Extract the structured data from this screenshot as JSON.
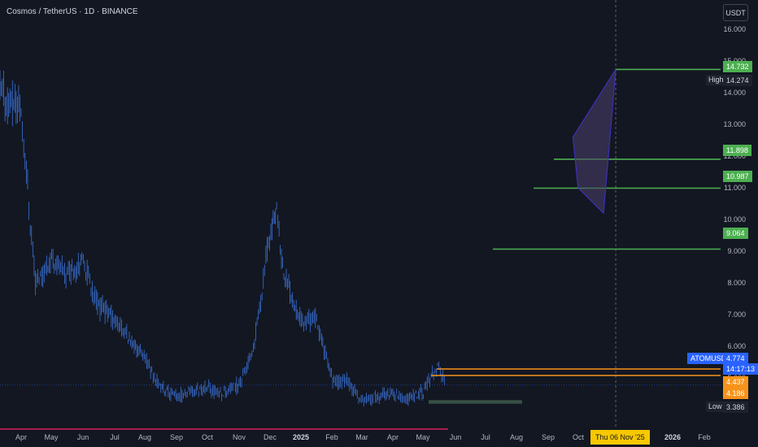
{
  "header": {
    "title": "Cosmos / TetherUS · 1D · BINANCE",
    "currency": "USDT"
  },
  "colors": {
    "background": "#131722",
    "candle": "#3b73d9",
    "level_green": "#4caf50",
    "orange": "#f7931a",
    "pink": "#e91e63",
    "blue_label": "#2962ff",
    "crosshair_date": "#f7c800",
    "pattern_fill": "#4a3f6b",
    "pattern_stroke": "#3f2fbd"
  },
  "chart_data": {
    "type": "candlestick",
    "symbol": "ATOMUSDT",
    "y_axis": {
      "ticks": [
        "16.000",
        "15.000",
        "14.000",
        "13.000",
        "12.000",
        "11.000",
        "10.000",
        "9.000",
        "8.000",
        "7.000",
        "6.000",
        "5.000",
        "4.000"
      ],
      "ylim": [
        3.2,
        16.5
      ]
    },
    "x_axis": {
      "ticks": [
        "Apr",
        "May",
        "Jun",
        "Jul",
        "Aug",
        "Sep",
        "Oct",
        "Nov",
        "Dec",
        "2025",
        "Feb",
        "Mar",
        "Apr",
        "May",
        "Jun",
        "Jul",
        "Aug",
        "Sep",
        "Oct",
        "Dec",
        "2026",
        "Feb"
      ]
    },
    "price_series": {
      "x": [
        "2024-04-01",
        "2024-04-15",
        "2024-05-01",
        "2024-05-15",
        "2024-06-01",
        "2024-06-15",
        "2024-07-01",
        "2024-07-15",
        "2024-08-01",
        "2024-08-15",
        "2024-09-01",
        "2024-09-15",
        "2024-10-01",
        "2024-10-15",
        "2024-11-01",
        "2024-11-15",
        "2024-12-01",
        "2024-12-08",
        "2024-12-15",
        "2025-01-01",
        "2025-01-15",
        "2025-02-01",
        "2025-02-15",
        "2025-03-01",
        "2025-03-15",
        "2025-04-01",
        "2025-04-15",
        "2025-05-01",
        "2025-05-15",
        "2025-05-23"
      ],
      "y": [
        13.5,
        8.0,
        8.8,
        8.3,
        8.7,
        7.3,
        6.9,
        6.3,
        5.6,
        4.7,
        4.4,
        4.6,
        4.7,
        4.5,
        4.8,
        5.8,
        9.5,
        10.2,
        8.3,
        6.8,
        6.9,
        4.9,
        4.9,
        4.3,
        4.4,
        4.5,
        4.3,
        4.6,
        5.4,
        4.8
      ]
    },
    "levels": [
      {
        "value": 14.732,
        "label": "14.732"
      },
      {
        "value": 11.898,
        "label": "11.898"
      },
      {
        "value": 10.987,
        "label": "10.987"
      },
      {
        "value": 9.064,
        "label": "9.064"
      }
    ],
    "support_lines": [
      {
        "value": 4.437,
        "label": "4.437"
      },
      {
        "value": 4.186,
        "label": "4.186"
      }
    ],
    "support_zone": {
      "from": 4.186,
      "to": 4.3
    },
    "low_line": {
      "value": 3.386
    },
    "current": {
      "label": "ATOMUSDT",
      "price": "4.774",
      "countdown": "14:17:13"
    },
    "high": {
      "label": "High",
      "value": "14.274"
    },
    "low": {
      "label": "Low",
      "value": "3.386"
    },
    "crosshair_date": "Thu 06 Nov '25",
    "pattern": {
      "type": "triangle-shape",
      "points": [
        {
          "date": "2025-09-25",
          "price": 12.6
        },
        {
          "date": "2025-11-06",
          "price": 14.732
        },
        {
          "date": "2025-10-25",
          "price": 10.2
        },
        {
          "date": "2025-09-30",
          "price": 11.0
        }
      ]
    }
  }
}
